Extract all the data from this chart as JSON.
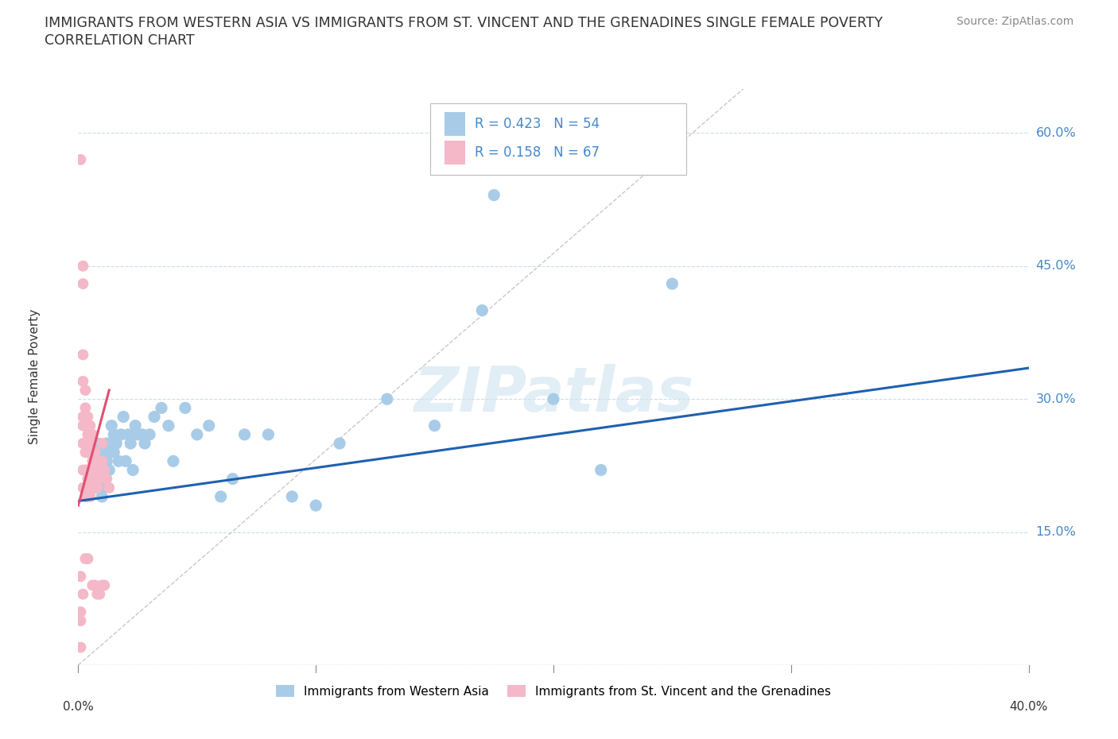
{
  "title_line1": "IMMIGRANTS FROM WESTERN ASIA VS IMMIGRANTS FROM ST. VINCENT AND THE GRENADINES SINGLE FEMALE POVERTY",
  "title_line2": "CORRELATION CHART",
  "source": "Source: ZipAtlas.com",
  "ylabel": "Single Female Poverty",
  "yticks": [
    0.0,
    0.15,
    0.3,
    0.45,
    0.6
  ],
  "ytick_labels": [
    "",
    "15.0%",
    "30.0%",
    "45.0%",
    "60.0%"
  ],
  "xlim": [
    0.0,
    0.4
  ],
  "ylim": [
    0.0,
    0.65
  ],
  "blue_R": 0.423,
  "blue_N": 54,
  "pink_R": 0.158,
  "pink_N": 67,
  "legend_label_blue": "Immigrants from Western Asia",
  "legend_label_pink": "Immigrants from St. Vincent and the Grenadines",
  "watermark": "ZIPatlas",
  "blue_color": "#a8cce8",
  "pink_color": "#f4b8c8",
  "blue_line_color": "#2060b0",
  "pink_line_color": "#e05070",
  "diag_line_color": "#cccccc",
  "blue_scatter_x": [
    0.005,
    0.006,
    0.007,
    0.007,
    0.008,
    0.008,
    0.009,
    0.009,
    0.01,
    0.01,
    0.01,
    0.011,
    0.011,
    0.012,
    0.012,
    0.013,
    0.013,
    0.014,
    0.015,
    0.015,
    0.016,
    0.017,
    0.018,
    0.019,
    0.02,
    0.021,
    0.022,
    0.023,
    0.024,
    0.025,
    0.027,
    0.028,
    0.03,
    0.032,
    0.035,
    0.038,
    0.04,
    0.045,
    0.05,
    0.055,
    0.06,
    0.065,
    0.07,
    0.08,
    0.09,
    0.1,
    0.11,
    0.13,
    0.15,
    0.17,
    0.175,
    0.2,
    0.22,
    0.25
  ],
  "blue_scatter_y": [
    0.22,
    0.24,
    0.2,
    0.23,
    0.22,
    0.25,
    0.21,
    0.23,
    0.22,
    0.2,
    0.19,
    0.24,
    0.22,
    0.25,
    0.23,
    0.22,
    0.24,
    0.27,
    0.24,
    0.26,
    0.25,
    0.23,
    0.26,
    0.28,
    0.23,
    0.26,
    0.25,
    0.22,
    0.27,
    0.26,
    0.26,
    0.25,
    0.26,
    0.28,
    0.29,
    0.27,
    0.23,
    0.29,
    0.26,
    0.27,
    0.19,
    0.21,
    0.26,
    0.26,
    0.19,
    0.18,
    0.25,
    0.3,
    0.27,
    0.4,
    0.53,
    0.3,
    0.22,
    0.43
  ],
  "pink_scatter_x": [
    0.001,
    0.001,
    0.001,
    0.001,
    0.001,
    0.002,
    0.002,
    0.002,
    0.002,
    0.002,
    0.002,
    0.002,
    0.002,
    0.002,
    0.002,
    0.003,
    0.003,
    0.003,
    0.003,
    0.003,
    0.003,
    0.003,
    0.003,
    0.003,
    0.004,
    0.004,
    0.004,
    0.004,
    0.004,
    0.004,
    0.004,
    0.004,
    0.004,
    0.005,
    0.005,
    0.005,
    0.005,
    0.005,
    0.005,
    0.005,
    0.006,
    0.006,
    0.006,
    0.006,
    0.006,
    0.006,
    0.006,
    0.007,
    0.007,
    0.007,
    0.007,
    0.007,
    0.007,
    0.008,
    0.008,
    0.008,
    0.008,
    0.009,
    0.009,
    0.009,
    0.01,
    0.01,
    0.01,
    0.011,
    0.011,
    0.012,
    0.013
  ],
  "pink_scatter_y": [
    0.57,
    0.1,
    0.05,
    0.06,
    0.02,
    0.45,
    0.43,
    0.35,
    0.32,
    0.28,
    0.27,
    0.25,
    0.22,
    0.2,
    0.08,
    0.31,
    0.29,
    0.27,
    0.25,
    0.24,
    0.22,
    0.2,
    0.19,
    0.12,
    0.28,
    0.26,
    0.25,
    0.24,
    0.22,
    0.21,
    0.2,
    0.19,
    0.12,
    0.27,
    0.25,
    0.24,
    0.22,
    0.21,
    0.2,
    0.19,
    0.26,
    0.24,
    0.23,
    0.22,
    0.21,
    0.2,
    0.09,
    0.24,
    0.23,
    0.22,
    0.21,
    0.2,
    0.09,
    0.23,
    0.22,
    0.2,
    0.08,
    0.22,
    0.21,
    0.08,
    0.25,
    0.23,
    0.09,
    0.22,
    0.09,
    0.21,
    0.2
  ]
}
